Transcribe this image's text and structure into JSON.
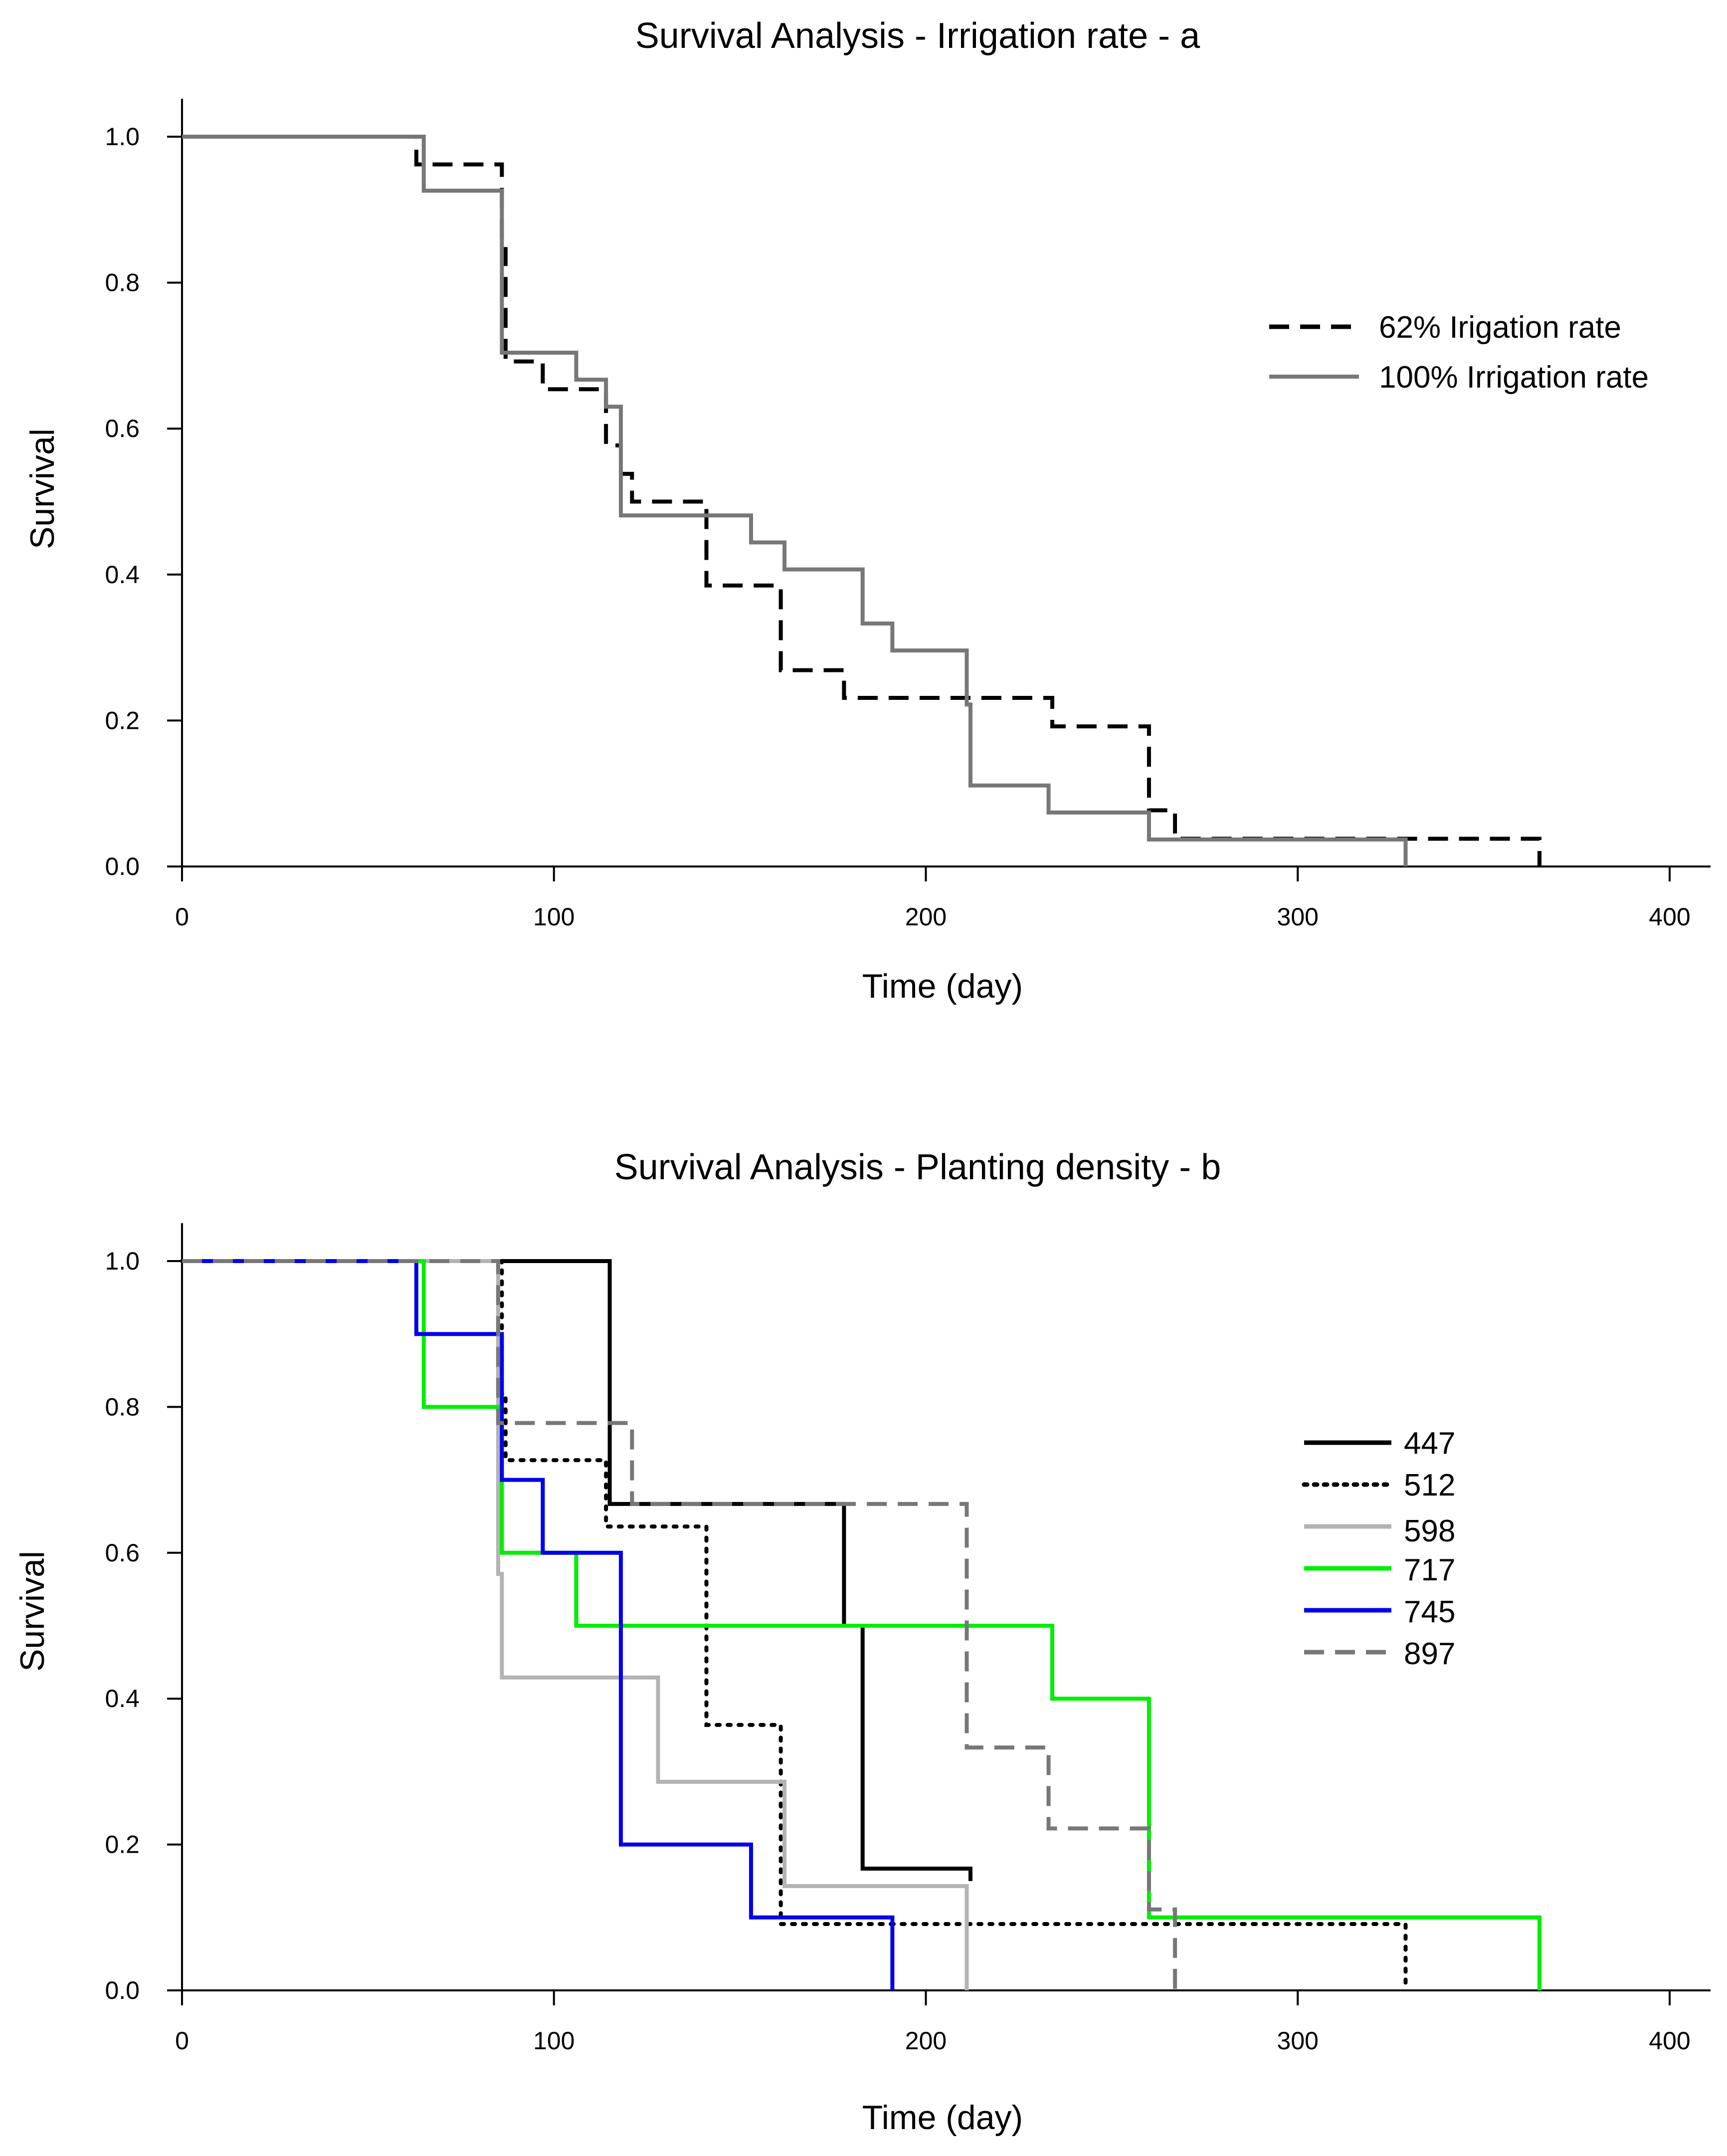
{
  "chart_data": [
    {
      "type": "line",
      "subtype": "kaplan-meier-step",
      "title": "Survival Analysis - Irrigation rate - a",
      "xlabel": "Time (day)",
      "ylabel": "Survival",
      "xlim": [
        0,
        410
      ],
      "ylim": [
        0,
        1.05
      ],
      "xticks": [
        0,
        100,
        200,
        300,
        400
      ],
      "xtick_labels": [
        "0",
        "100",
        "200",
        "300",
        "400"
      ],
      "yticks": [
        0.0,
        0.2,
        0.4,
        0.6,
        0.8,
        1.0
      ],
      "ytick_labels": [
        "0.0",
        "0.2",
        "0.4",
        "0.6",
        "0.8",
        "1.0"
      ],
      "grid": false,
      "legend_position": "upper-right",
      "series": [
        {
          "name": "62% Irigation rate",
          "color": "#000000",
          "dash": "dashed",
          "times": [
            0,
            63,
            86,
            87,
            97,
            114,
            118,
            121,
            128,
            141,
            161,
            178,
            234,
            260,
            267,
            365
          ],
          "survival": [
            1.0,
            0.962,
            0.846,
            0.692,
            0.654,
            0.577,
            0.538,
            0.5,
            0.5,
            0.385,
            0.269,
            0.231,
            0.192,
            0.077,
            0.038,
            0.0
          ]
        },
        {
          "name": "100% Irrigation rate",
          "color": "#777777",
          "dash": "solid",
          "times": [
            0,
            65,
            86,
            106,
            114,
            118,
            153,
            162,
            183,
            191,
            211,
            212,
            233,
            260,
            329
          ],
          "survival": [
            1.0,
            0.926,
            0.704,
            0.667,
            0.63,
            0.481,
            0.444,
            0.407,
            0.333,
            0.296,
            0.222,
            0.111,
            0.074,
            0.037,
            0.0
          ]
        }
      ]
    },
    {
      "type": "line",
      "subtype": "kaplan-meier-step",
      "title": "Survival Analysis - Planting density - b",
      "xlabel": "Time (day)",
      "ylabel": "Survival",
      "xlim": [
        0,
        410
      ],
      "ylim": [
        0,
        1.05
      ],
      "xticks": [
        0,
        100,
        200,
        300,
        400
      ],
      "xtick_labels": [
        "0",
        "100",
        "200",
        "300",
        "400"
      ],
      "yticks": [
        0.0,
        0.2,
        0.4,
        0.6,
        0.8,
        1.0
      ],
      "ytick_labels": [
        "0.0",
        "0.2",
        "0.4",
        "0.6",
        "0.8",
        "1.0"
      ],
      "grid": false,
      "legend_position": "right",
      "series": [
        {
          "name": "447",
          "color": "#000000",
          "dash": "solid",
          "times": [
            0,
            115,
            178,
            183,
            212
          ],
          "survival": [
            1.0,
            0.667,
            0.5,
            0.167,
            0.15
          ]
        },
        {
          "name": "512",
          "color": "#000000",
          "dash": "dotted",
          "times": [
            0,
            86,
            87,
            114,
            141,
            161,
            329
          ],
          "survival": [
            1.0,
            0.818,
            0.727,
            0.636,
            0.364,
            0.091,
            0.0
          ]
        },
        {
          "name": "598",
          "color": "#b3b3b3",
          "dash": "solid",
          "times": [
            0,
            85,
            86,
            128,
            162,
            211
          ],
          "survival": [
            1.0,
            0.571,
            0.429,
            0.286,
            0.143,
            0.0
          ]
        },
        {
          "name": "717",
          "color": "#00ee00",
          "dash": "solid",
          "times": [
            0,
            65,
            86,
            106,
            234,
            260,
            365
          ],
          "survival": [
            1.0,
            0.8,
            0.6,
            0.5,
            0.4,
            0.1,
            0.0
          ]
        },
        {
          "name": "745",
          "color": "#0000ee",
          "dash": "solid",
          "times": [
            0,
            63,
            86,
            97,
            118,
            153,
            191
          ],
          "survival": [
            1.0,
            0.9,
            0.7,
            0.6,
            0.2,
            0.1,
            0.0
          ]
        },
        {
          "name": "897",
          "color": "#777777",
          "dash": "dashed",
          "times": [
            0,
            85,
            121,
            211,
            233,
            260,
            267
          ],
          "survival": [
            1.0,
            0.778,
            0.667,
            0.333,
            0.222,
            0.111,
            0.0
          ]
        }
      ]
    }
  ]
}
